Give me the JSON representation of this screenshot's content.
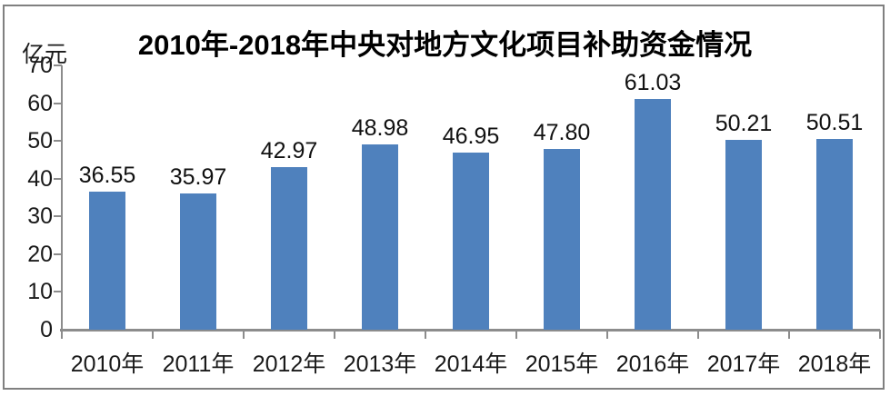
{
  "title": "2010年-2018年中央对地方文化项目补助资金情况",
  "unit_label": "亿元",
  "colors": {
    "bar": "#4F81BD",
    "axis": "#8C8C8C",
    "frame_border": "#808080",
    "text": "#1A1A1A",
    "title_text": "#000000",
    "background": "#FFFFFF"
  },
  "chart_data": {
    "type": "bar",
    "title": "2010年-2018年中央对地方文化项目补助资金情况",
    "xlabel": "",
    "ylabel": "亿元",
    "categories": [
      "2010年",
      "2011年",
      "2012年",
      "2013年",
      "2014年",
      "2015年",
      "2016年",
      "2017年",
      "2018年"
    ],
    "values": [
      36.55,
      35.97,
      42.97,
      48.98,
      46.95,
      47.8,
      61.03,
      50.21,
      50.51
    ],
    "data_labels": [
      "36.55",
      "35.97",
      "42.97",
      "48.98",
      "46.95",
      "47.80",
      "61.03",
      "50.21",
      "50.51"
    ],
    "ylim": [
      0,
      70
    ],
    "yticks": [
      0,
      10,
      20,
      30,
      40,
      50,
      60,
      70
    ],
    "grid": "off",
    "legend": "none",
    "data_label_position": "above-bar"
  }
}
